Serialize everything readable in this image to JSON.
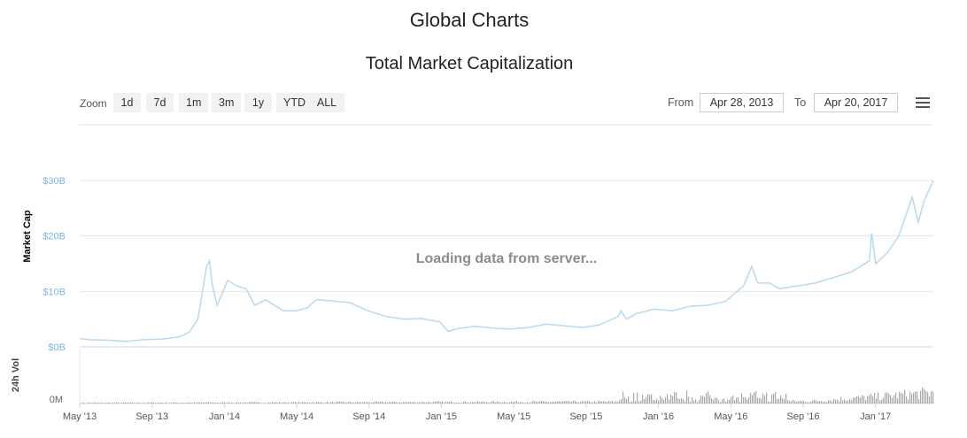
{
  "header": {
    "title": "Global Charts",
    "chart_title": "Total Market Capitalization"
  },
  "toolbar": {
    "zoom_label": "Zoom",
    "zoom_buttons": [
      "1d",
      "7d",
      "1m",
      "3m",
      "1y",
      "YTD",
      "ALL"
    ],
    "from_label": "From",
    "from_value": "Apr 28, 2013",
    "to_label": "To",
    "to_value": "Apr 20, 2017"
  },
  "loading_text": "Loading data from server...",
  "colors": {
    "market_cap_line": "#b8d9f0",
    "volume_bars": "#a9a9a9",
    "axis_label": "#7cb5ec"
  },
  "chart_data": {
    "type": "line",
    "x_tick_labels": [
      "May '13",
      "Sep '13",
      "Jan '14",
      "May '14",
      "Sep '14",
      "Jan '15",
      "May '15",
      "Sep '15",
      "Jan '16",
      "May '16",
      "Sep '16",
      "Jan '17"
    ],
    "y_tick_labels": [
      "$0B",
      "$10B",
      "$20B",
      "$30B"
    ],
    "ylabel": "Market Cap",
    "ylim": [
      0,
      30
    ],
    "volume_ylabel": "24h Vol",
    "volume_tick_labels": [
      "0M"
    ],
    "x_range": [
      "2013-04-28",
      "2017-04-20"
    ],
    "grid": true,
    "series": [
      {
        "values": [
          [
            "2013-04-28",
            1.5
          ],
          [
            "2013-05-15",
            1.3
          ],
          [
            "2013-06-15",
            1.2
          ],
          [
            "2013-07-15",
            1.0
          ],
          [
            "2013-08-15",
            1.3
          ],
          [
            "2013-09-15",
            1.4
          ],
          [
            "2013-10-15",
            1.8
          ],
          [
            "2013-11-01",
            2.7
          ],
          [
            "2013-11-15",
            5.0
          ],
          [
            "2013-11-30",
            14.5
          ],
          [
            "2013-12-05",
            15.5
          ],
          [
            "2013-12-10",
            11.0
          ],
          [
            "2013-12-18",
            7.5
          ],
          [
            "2014-01-05",
            12.0
          ],
          [
            "2014-01-20",
            11.0
          ],
          [
            "2014-02-05",
            10.5
          ],
          [
            "2014-02-20",
            7.5
          ],
          [
            "2014-03-10",
            8.5
          ],
          [
            "2014-04-10",
            6.5
          ],
          [
            "2014-05-01",
            6.5
          ],
          [
            "2014-05-20",
            7.0
          ],
          [
            "2014-06-05",
            8.5
          ],
          [
            "2014-07-01",
            8.3
          ],
          [
            "2014-08-01",
            8.0
          ],
          [
            "2014-09-01",
            6.5
          ],
          [
            "2014-10-01",
            5.5
          ],
          [
            "2014-11-01",
            5.0
          ],
          [
            "2014-12-01",
            5.1
          ],
          [
            "2015-01-01",
            4.5
          ],
          [
            "2015-01-15",
            2.8
          ],
          [
            "2015-02-01",
            3.3
          ],
          [
            "2015-03-01",
            3.7
          ],
          [
            "2015-04-01",
            3.4
          ],
          [
            "2015-05-01",
            3.2
          ],
          [
            "2015-06-01",
            3.5
          ],
          [
            "2015-07-01",
            4.1
          ],
          [
            "2015-08-01",
            3.8
          ],
          [
            "2015-09-01",
            3.5
          ],
          [
            "2015-10-01",
            4.0
          ],
          [
            "2015-11-01",
            5.5
          ],
          [
            "2015-11-05",
            6.5
          ],
          [
            "2015-11-15",
            5.0
          ],
          [
            "2015-12-01",
            6.0
          ],
          [
            "2016-01-01",
            6.8
          ],
          [
            "2016-02-01",
            6.5
          ],
          [
            "2016-03-01",
            7.3
          ],
          [
            "2016-04-01",
            7.5
          ],
          [
            "2016-05-01",
            8.2
          ],
          [
            "2016-06-01",
            11.0
          ],
          [
            "2016-06-15",
            14.5
          ],
          [
            "2016-06-25",
            11.5
          ],
          [
            "2016-07-15",
            11.5
          ],
          [
            "2016-08-01",
            10.5
          ],
          [
            "2016-09-01",
            11.0
          ],
          [
            "2016-10-01",
            11.5
          ],
          [
            "2016-11-01",
            12.5
          ],
          [
            "2016-12-01",
            13.5
          ],
          [
            "2017-01-01",
            15.5
          ],
          [
            "2017-01-05",
            20.5
          ],
          [
            "2017-01-12",
            15.0
          ],
          [
            "2017-02-01",
            17.0
          ],
          [
            "2017-02-20",
            20.0
          ],
          [
            "2017-03-05",
            24.0
          ],
          [
            "2017-03-15",
            27.0
          ],
          [
            "2017-03-25",
            22.5
          ],
          [
            "2017-04-05",
            26.5
          ],
          [
            "2017-04-20",
            30.0
          ]
        ]
      }
    ]
  }
}
